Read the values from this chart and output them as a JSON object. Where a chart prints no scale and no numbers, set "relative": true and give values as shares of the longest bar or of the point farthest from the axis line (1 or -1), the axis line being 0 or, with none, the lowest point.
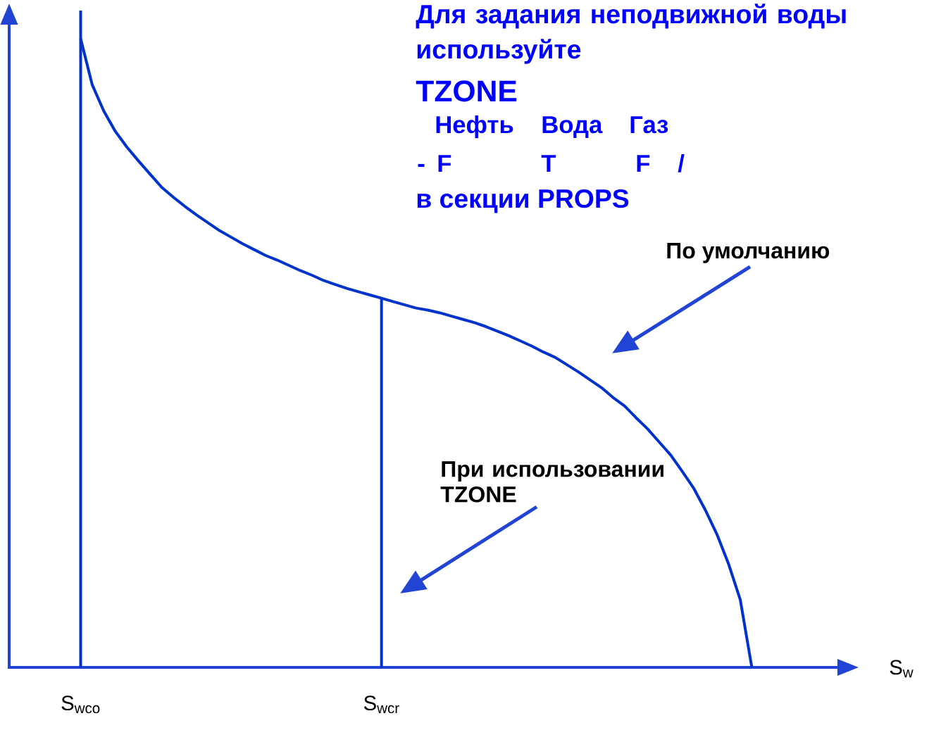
{
  "chart_data": {
    "type": "line",
    "relative": true,
    "categories": [
      "S$_{wco}$",
      null,
      null,
      null,
      null,
      null,
      null,
      null,
      null,
      null,
      null,
      null,
      null,
      null,
      null,
      null,
      null,
      null,
      null,
      null,
      null,
      null,
      null,
      null,
      null,
      null,
      "S$_{wcr}$",
      null,
      null,
      null,
      null,
      null,
      null,
      null,
      null,
      null,
      null,
      null,
      null,
      null,
      null,
      null,
      null,
      null,
      null,
      null,
      null,
      null,
      null,
      null,
      null,
      null,
      null,
      null,
      null,
      null,
      null,
      null,
      null
    ],
    "series": [
      {
        "color": "#0033cc",
        "values": [
          0.957,
          0.887,
          0.847,
          0.816,
          0.792,
          0.771,
          0.751,
          0.731,
          0.716,
          0.702,
          0.689,
          0.677,
          0.665,
          0.655,
          0.645,
          0.636,
          0.627,
          0.62,
          0.612,
          0.604,
          0.597,
          0.589,
          0.583,
          0.577,
          0.572,
          0.567,
          0.562,
          0.557,
          0.552,
          0.547,
          0.544,
          0.54,
          0.535,
          0.53,
          0.525,
          0.519,
          0.512,
          0.505,
          0.497,
          0.489,
          0.48,
          0.472,
          0.461,
          0.45,
          0.438,
          0.426,
          0.411,
          0.398,
          0.38,
          0.363,
          0.343,
          0.323,
          0.298,
          0.272,
          0.239,
          0.202,
          0.157,
          0.103,
          0
        ]
      },
      {
        "color": "#0033cc",
        "x": [
          "S$_{wco}$",
          "S$_{wco}$"
        ],
        "values": [
          0,
          1
        ]
      },
      {
        "color": "#0033cc",
        "x": [
          "S$_{wcr}$",
          "S$_{wcr}$"
        ],
        "values": [
          0,
          0.562
        ]
      }
    ],
    "annotations": [
      "Для задания неподвижной воды используйте",
      "TZONE",
      "Нефть",
      "Вода",
      "Газ",
      "-",
      "F",
      "T",
      "F",
      "/",
      "в секции PROPS",
      "По умолчанию",
      "При использовании TZONE",
      "S$_{w}$"
    ]
  }
}
